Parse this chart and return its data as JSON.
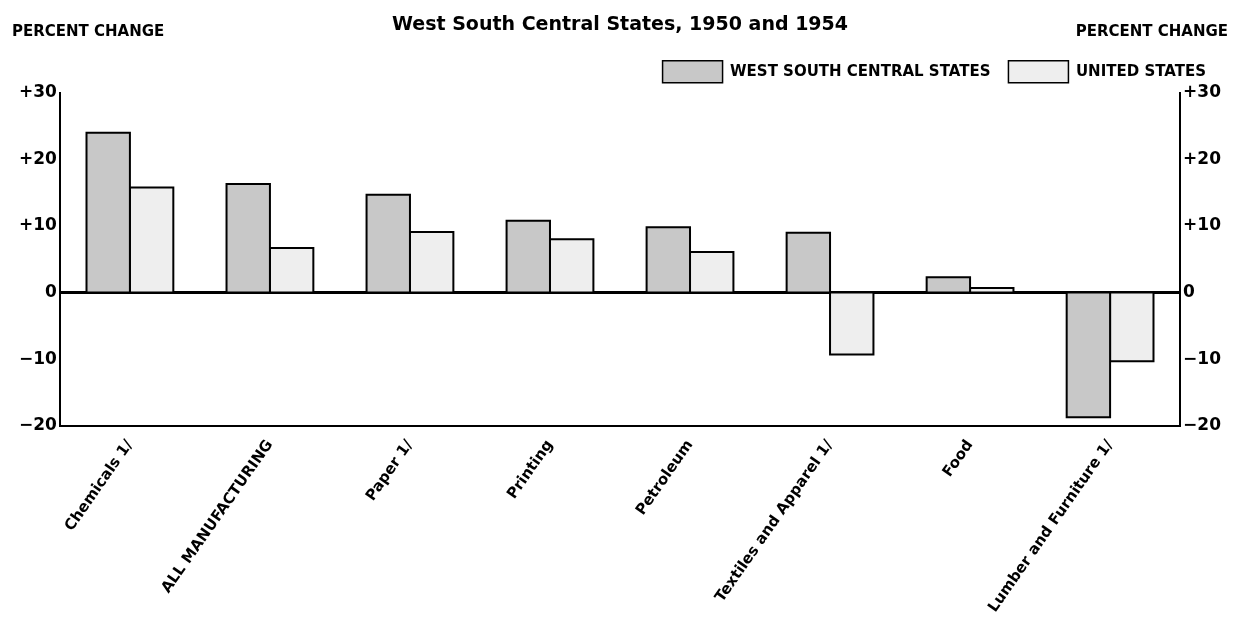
{
  "chart_data": {
    "type": "bar",
    "title": "West South Central States, 1950 and 1954",
    "ylabel": "PERCENT CHANGE",
    "y2label": "PERCENT CHANGE",
    "categories": [
      "Chemicals 1/",
      "ALL MANUFACTURING",
      "Paper 1/",
      "Printing",
      "Petroleum",
      "Textiles and Apparel 1/",
      "Food",
      "Lumber and Furniture 1/"
    ],
    "series": [
      {
        "name": "WEST SOUTH CENTRAL STATES",
        "color": "#c8c8c8",
        "values": [
          24.0,
          16.3,
          14.7,
          10.8,
          9.8,
          9.0,
          2.3,
          -18.7
        ]
      },
      {
        "name": "UNITED STATES",
        "color": "#eeeeee",
        "values": [
          15.8,
          6.7,
          9.1,
          8.0,
          6.1,
          -9.3,
          0.7,
          -10.3
        ]
      }
    ],
    "ylim": [
      -20,
      30
    ],
    "yticks": [
      {
        "value": -20,
        "label": "−20"
      },
      {
        "value": -10,
        "label": "−10"
      },
      0,
      {
        "value": 10,
        "label": "+10"
      },
      {
        "value": 20,
        "label": "+20"
      },
      {
        "value": 30,
        "label": "+30"
      }
    ],
    "y2lim": [
      -20,
      30
    ],
    "y2ticks": [
      {
        "value": -20,
        "label": "−20"
      },
      {
        "value": -10,
        "label": "−10"
      },
      0,
      {
        "value": 10,
        "label": "+10"
      },
      {
        "value": 20,
        "label": "+20"
      },
      {
        "value": 30,
        "label": "+30"
      }
    ],
    "ref_lines": [
      {
        "axis": "y",
        "value": 0,
        "color": "#000000"
      }
    ],
    "legend": "top right",
    "grid": false
  }
}
